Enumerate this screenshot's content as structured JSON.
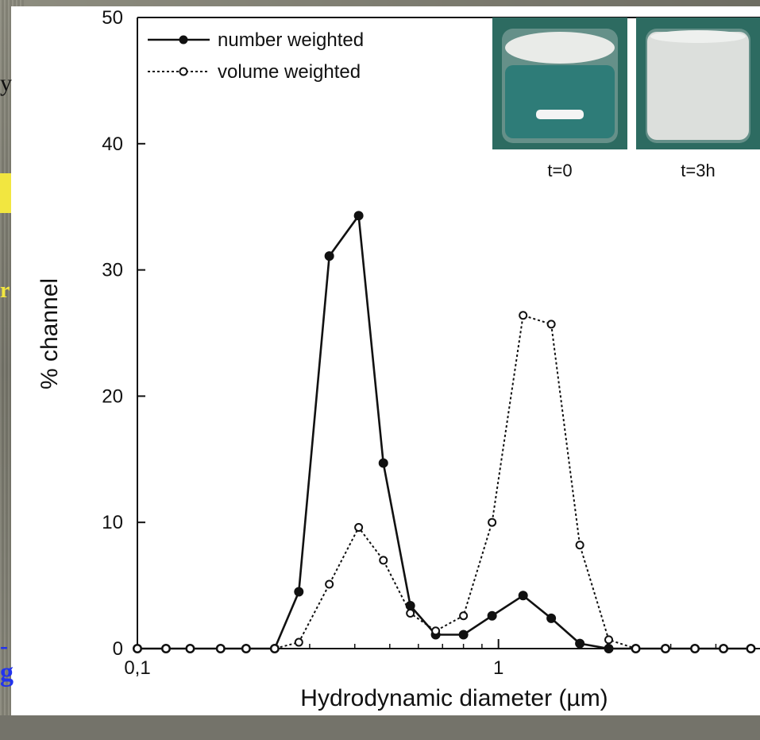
{
  "chart_data": {
    "type": "line",
    "xlabel": "Hydrodynamic diameter (µm)",
    "ylabel": "% channel",
    "x_scale": "log",
    "xlim": [
      0.1,
      5.3
    ],
    "ylim": [
      0,
      50
    ],
    "xtick_labels": [
      "0,1",
      "1"
    ],
    "xticks": [
      0.1,
      1
    ],
    "yticks": [
      0,
      10,
      20,
      30,
      40,
      50
    ],
    "legend_position": "top-left",
    "series": [
      {
        "name": "number weighted",
        "style": "solid",
        "marker": "filled-circle",
        "color": "#111111",
        "x": [
          0.1,
          0.12,
          0.14,
          0.17,
          0.2,
          0.24,
          0.28,
          0.34,
          0.41,
          0.48,
          0.57,
          0.67,
          0.8,
          0.96,
          1.17,
          1.4,
          1.68,
          2.02,
          2.4,
          2.9,
          3.5,
          4.2,
          5.0
        ],
        "y": [
          0,
          0,
          0,
          0,
          0,
          0,
          4.5,
          31.1,
          34.3,
          14.7,
          3.4,
          1.1,
          1.1,
          2.6,
          4.2,
          2.4,
          0.4,
          0,
          0,
          0,
          0,
          0,
          0
        ]
      },
      {
        "name": "volume weighted",
        "style": "dotted",
        "marker": "open-circle",
        "color": "#111111",
        "x": [
          0.1,
          0.12,
          0.14,
          0.17,
          0.2,
          0.24,
          0.28,
          0.34,
          0.41,
          0.48,
          0.57,
          0.67,
          0.8,
          0.96,
          1.17,
          1.4,
          1.68,
          2.02,
          2.4,
          2.9,
          3.5,
          4.2,
          5.0
        ],
        "y": [
          0,
          0,
          0,
          0,
          0,
          0,
          0.5,
          5.1,
          9.6,
          7.0,
          2.8,
          1.4,
          2.6,
          10.0,
          26.4,
          25.7,
          8.2,
          0.7,
          0,
          0,
          0,
          0,
          0
        ]
      }
    ],
    "inset_photos": [
      {
        "label": "t=0",
        "water": "#2e7c78",
        "solid": "#e9ebe8"
      },
      {
        "label": "t=3h",
        "water": "#dcdfdc",
        "solid": "#cfd3d0"
      }
    ]
  },
  "slide_fragments": {
    "left_y": "y",
    "left_r": "r",
    "left_dot": "-",
    "left_g": "g"
  }
}
